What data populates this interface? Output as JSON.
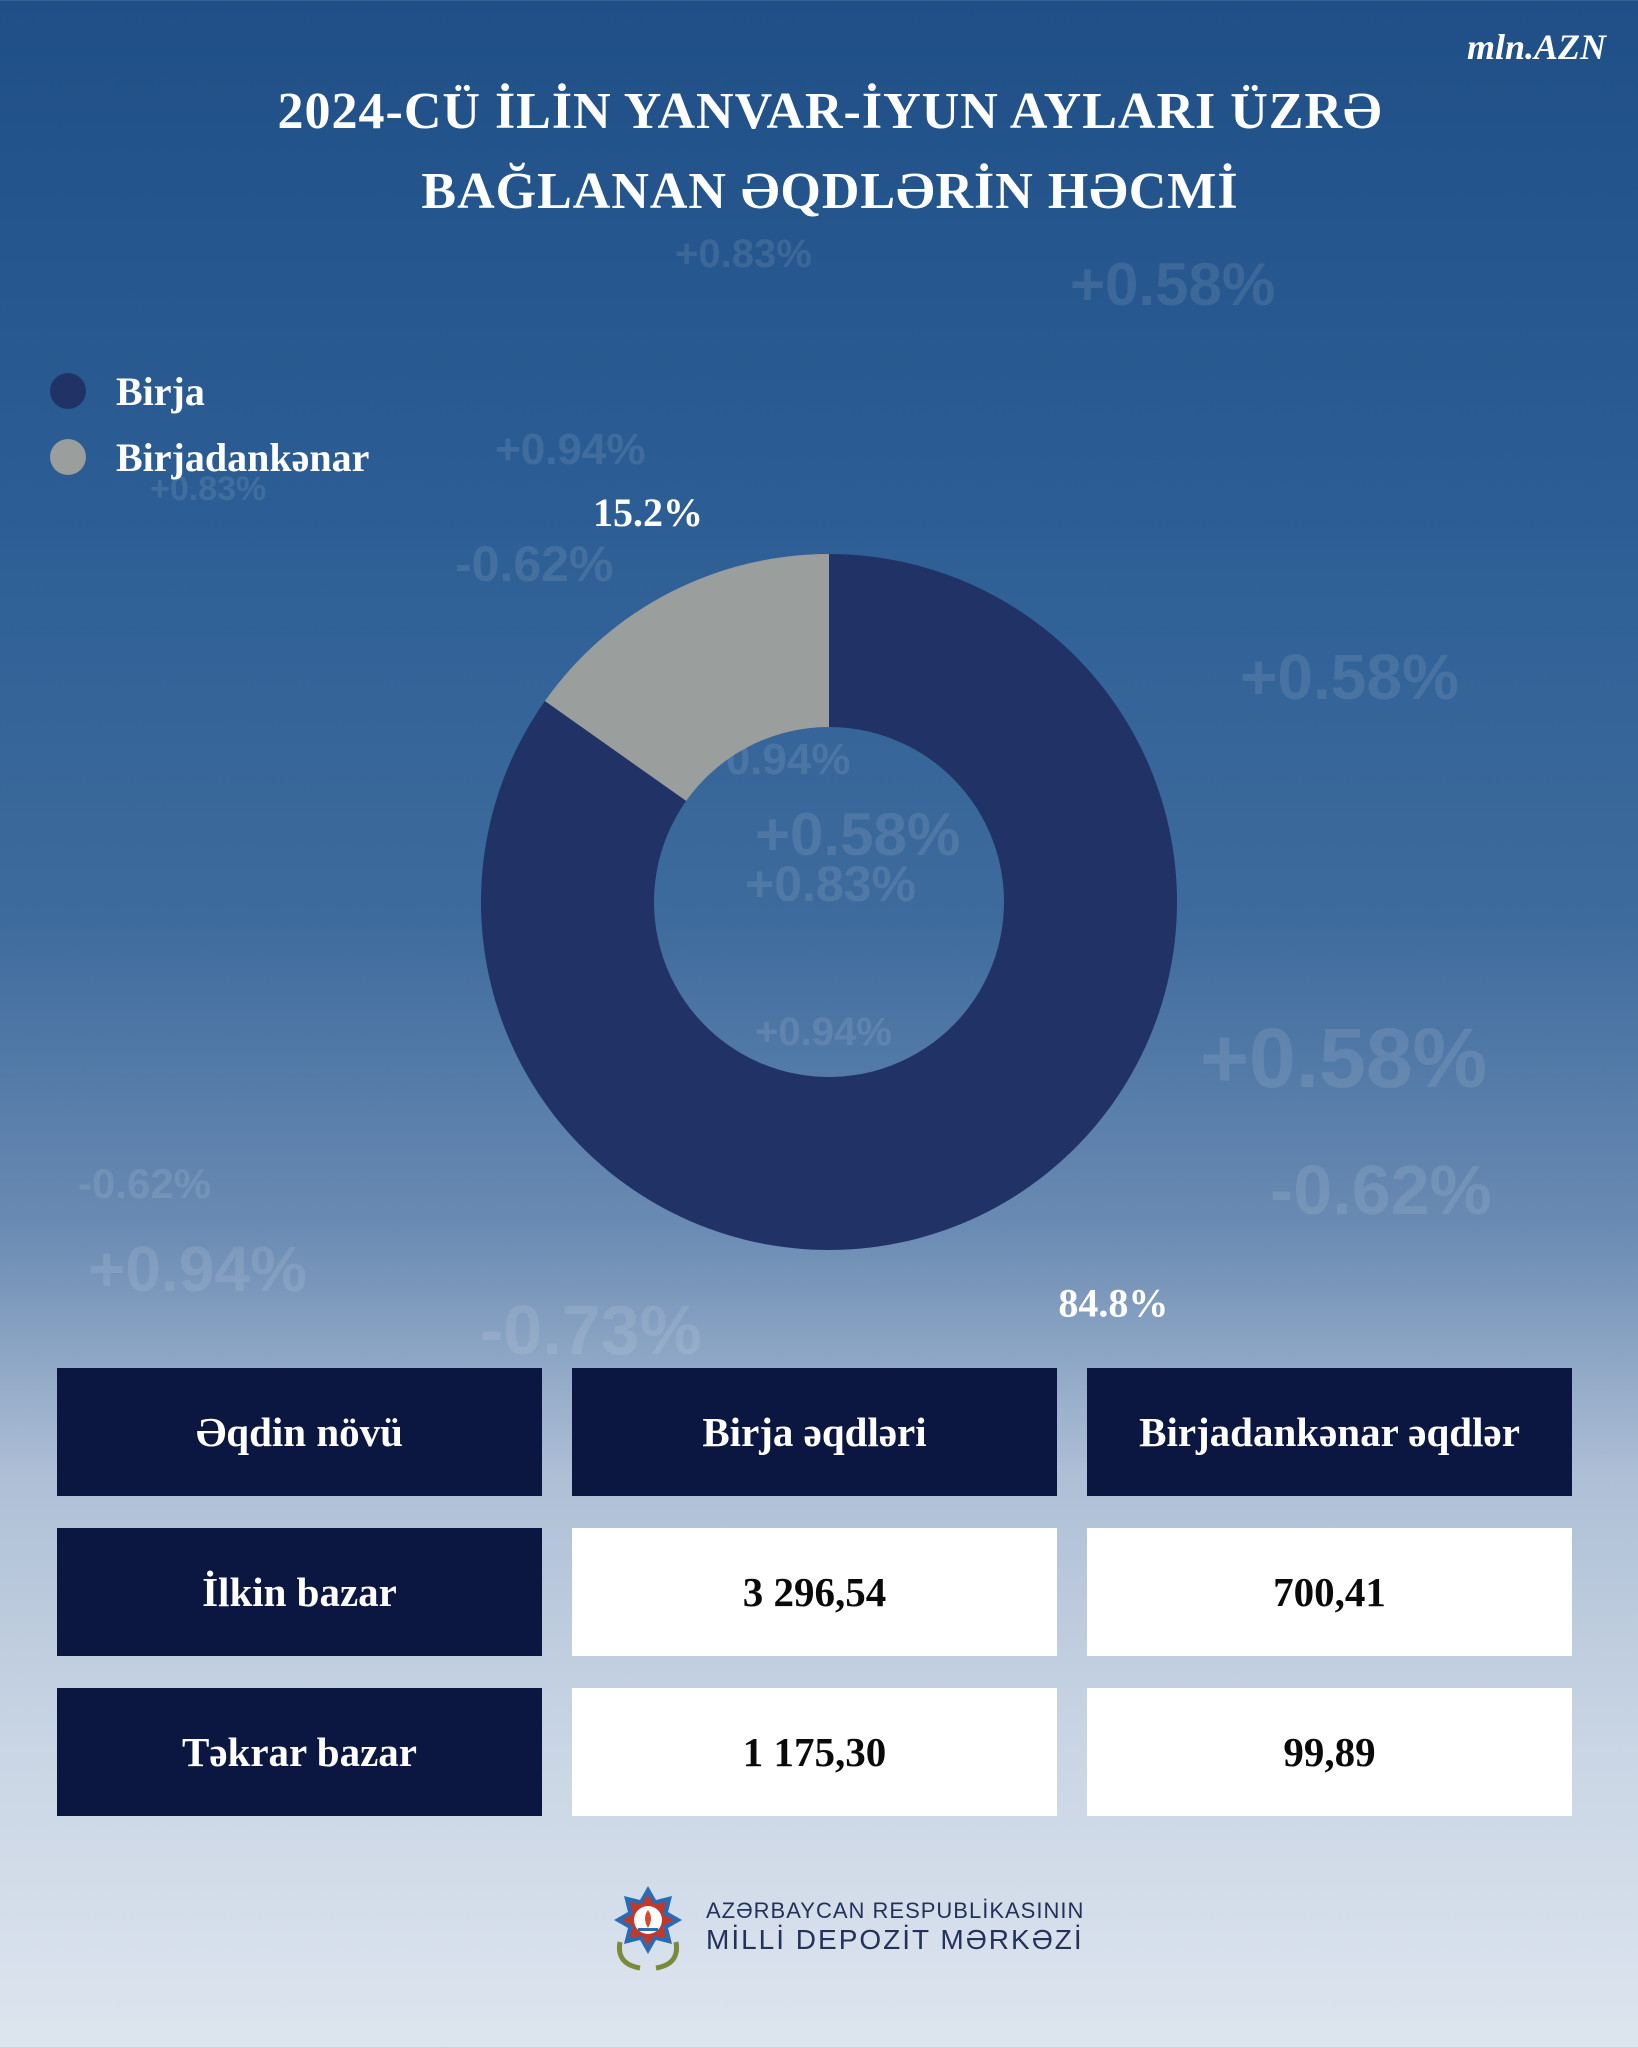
{
  "unit_label": "mln.AZN",
  "title_lines": [
    "2024-CÜ İLİN YANVAR-İYUN AYLARI ÜZRƏ",
    "BAĞLANAN ƏQDLƏRİN HƏCMİ"
  ],
  "legend": [
    {
      "label": "Birja",
      "color": "#213366"
    },
    {
      "label": "Birjadankənar",
      "color": "#9a9e9d"
    }
  ],
  "chart_data": {
    "type": "pie",
    "donut": true,
    "categories": [
      "Birja",
      "Birjadankənar"
    ],
    "values": [
      84.8,
      15.2
    ],
    "labels": [
      "84.8%",
      "15.2%"
    ],
    "colors": [
      "#213366",
      "#9a9e9d"
    ]
  },
  "table": {
    "headers": [
      "Əqdin növü",
      "Birja əqdləri",
      "Birjadankənar əqdlər"
    ],
    "rows": [
      [
        "İlkin bazar",
        "3 296,54",
        "700,41"
      ],
      [
        "Təkrar bazar",
        "1 175,30",
        "99,89"
      ]
    ]
  },
  "background_text": [
    "+0.83%",
    "+0.58%",
    "+0.94%",
    "-0.62%",
    "+0.83%",
    "+0.58%",
    "+0.94%",
    "+0.58%",
    "+0.83%",
    "+0.94%",
    "-0.62%",
    "+0.94%",
    "-0.73%",
    "+0.58%",
    "-0.62%"
  ],
  "footer": {
    "line1": "AZƏRBAYCAN RESPUBLİKASININ",
    "line2": "MİLLİ DEPOZİT MƏRKƏZİ"
  },
  "colors": {
    "birja": "#213366",
    "birjadankenar": "#9a9e9d",
    "table_dark": "#0b1740",
    "table_light": "#ffffff"
  }
}
